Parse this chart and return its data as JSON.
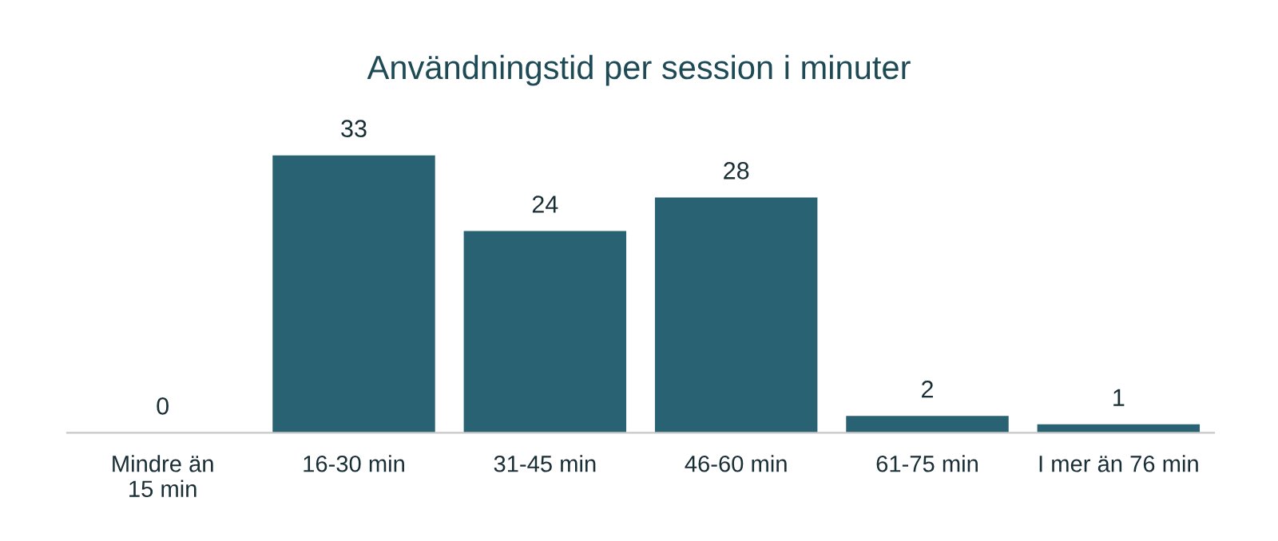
{
  "chart_data": {
    "type": "bar",
    "title": "Användningstid per session i minuter",
    "categories": [
      "Mindre än\n15 min",
      "16-30 min",
      "31-45 min",
      "46-60 min",
      "61-75 min",
      "I mer än 76 min"
    ],
    "values": [
      0,
      33,
      24,
      28,
      2,
      1
    ],
    "color": "#296272",
    "data_labels": true,
    "grid": false,
    "legend": false
  }
}
